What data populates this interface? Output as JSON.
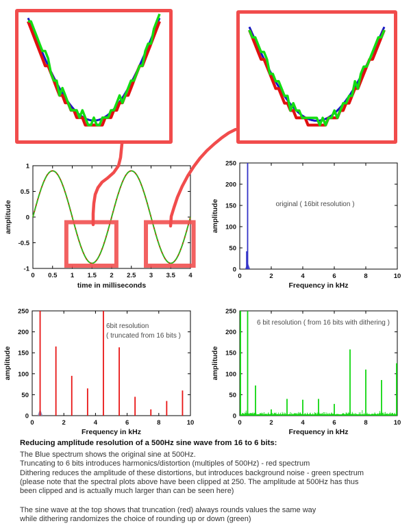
{
  "figure": {
    "accent_red": "#f14c4c",
    "series_colors": {
      "original_blue": "#3232c8",
      "truncated_red": "#e81414",
      "dithered_green": "#0fd60f"
    }
  },
  "insets": {
    "border_color": "#f14c4c",
    "left_name": "zoom of first sine trough",
    "right_name": "zoom of second sine trough",
    "series": [
      {
        "name": "original (16 bit)",
        "color": "#1616c8"
      },
      {
        "name": "truncated (6 bit)",
        "color": "#e01010"
      },
      {
        "name": "dithered (6 bit)",
        "color": "#12dd12"
      }
    ]
  },
  "chart_data": [
    {
      "id": "time_domain",
      "type": "line",
      "title": "",
      "xlabel": "time in milliseconds",
      "ylabel": "amplitude",
      "xlim": [
        0,
        4
      ],
      "ylim": [
        -1,
        1
      ],
      "xticks": [
        0,
        0.5,
        1,
        1.5,
        2,
        2.5,
        3,
        3.5,
        4
      ],
      "yticks": [
        -1,
        -0.5,
        0,
        0.5,
        1
      ],
      "grid": false,
      "sine": {
        "amplitude": 0.9,
        "frequency_khz": 0.5,
        "period_ms": 2
      },
      "series": [
        {
          "name": "truncated (6 bit)",
          "color": "#cc2200"
        },
        {
          "name": "dithered (6 bit)",
          "color": "#1ec81e"
        }
      ],
      "highlight_boxes": [
        {
          "x1": 0.85,
          "y1": -0.947,
          "x2": 2.12,
          "y2": -0.1
        },
        {
          "x1": 2.87,
          "y1": -0.947,
          "x2": 4.08,
          "y2": -0.1
        }
      ]
    },
    {
      "id": "spectrum_original",
      "type": "stem",
      "color": "#3232c8",
      "label": "original ( 16bit resolution )",
      "xlabel": "Frequency in kHz",
      "ylabel": "amplitude",
      "xlim": [
        0,
        10
      ],
      "ylim": [
        0,
        250
      ],
      "xticks": [
        0,
        2,
        4,
        6,
        8,
        10
      ],
      "yticks": [
        0,
        50,
        100,
        150,
        200,
        250
      ],
      "clip": 250,
      "peaks": [
        {
          "f": 0.5,
          "a": 250
        },
        {
          "f": 0.44,
          "a": 42
        }
      ],
      "base_bump": {
        "f": 0.5,
        "a": 16,
        "w": 0.16,
        "color": "#3232c8"
      }
    },
    {
      "id": "spectrum_truncated",
      "type": "stem",
      "color": "#e81414",
      "label_lines": [
        "6bit resolution",
        "( truncated from 16 bits )"
      ],
      "xlabel": "Frequency in kHz",
      "ylabel": "amplitude",
      "xlim": [
        0,
        10
      ],
      "ylim": [
        0,
        250
      ],
      "xticks": [
        0,
        2,
        4,
        6,
        8,
        10
      ],
      "yticks": [
        0,
        50,
        100,
        150,
        200,
        250
      ],
      "clip": 250,
      "peaks": [
        {
          "f": 0.5,
          "a": 250
        },
        {
          "f": 1.5,
          "a": 165
        },
        {
          "f": 2.5,
          "a": 95
        },
        {
          "f": 3.5,
          "a": 65
        },
        {
          "f": 4.5,
          "a": 250
        },
        {
          "f": 5.5,
          "a": 163
        },
        {
          "f": 6.5,
          "a": 45
        },
        {
          "f": 7.5,
          "a": 15
        },
        {
          "f": 8.5,
          "a": 35
        },
        {
          "f": 9.5,
          "a": 60
        }
      ],
      "base_bump": {
        "f": 0.5,
        "a": 16,
        "w": 0.16,
        "color": "#8080b0"
      }
    },
    {
      "id": "spectrum_dithered",
      "type": "stem",
      "color": "#0fd60f",
      "label": "6 bit resolution ( from 16 bits with dithering )",
      "xlabel": "Frequency in kHz",
      "ylabel": "amplitude",
      "xlim": [
        0,
        10
      ],
      "ylim": [
        0,
        250
      ],
      "xticks": [
        0,
        2,
        4,
        6,
        8,
        10
      ],
      "yticks": [
        0,
        50,
        100,
        150,
        200,
        250
      ],
      "clip": 250,
      "noise_floor": 7,
      "peaks": [
        {
          "f": 0,
          "a": 250
        },
        {
          "f": 0.5,
          "a": 250
        },
        {
          "f": 1,
          "a": 72
        },
        {
          "f": 2,
          "a": 15
        },
        {
          "f": 3,
          "a": 40
        },
        {
          "f": 4,
          "a": 38
        },
        {
          "f": 5,
          "a": 40
        },
        {
          "f": 6,
          "a": 28
        },
        {
          "f": 7,
          "a": 158
        },
        {
          "f": 8,
          "a": 110
        },
        {
          "f": 9,
          "a": 85
        },
        {
          "f": 10,
          "a": 125
        }
      ]
    }
  ],
  "caption": {
    "title": "Reducing amplitude resolution of a 500Hz sine wave from 16 to 6 bits:",
    "para1": [
      "The Blue spectrum shows the original sine at 500Hz.",
      "Truncating to 6 bits introduces harmonics/distortion (multiples of 500Hz) - red spectrum",
      "Dithering reduces the amplitude of these distortions, but introduces background noise - green spectrum",
      "(please note that the spectral plots above have been clipped at 250. The amplitude at 500Hz has thus",
      "been clipped and is actually much larger than can be seen here)"
    ],
    "para2": [
      "The sine wave at the top shows that truncation (red) always rounds values the same way",
      "while dithering randomizes the choice of rounding up or down (green)"
    ]
  }
}
